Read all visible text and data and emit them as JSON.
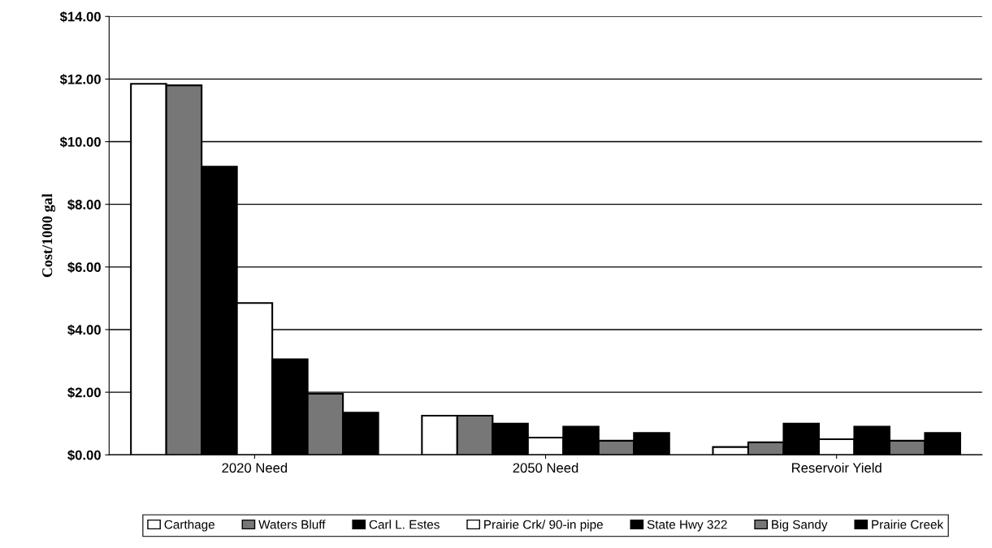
{
  "chart_data": {
    "type": "bar",
    "ylabel": "Cost/1000 gal",
    "categories": [
      "2020 Need",
      "2050 Need",
      "Reservoir Yield"
    ],
    "series": [
      {
        "name": "Carthage",
        "color": "#ffffff",
        "values": [
          11.85,
          1.25,
          0.25
        ]
      },
      {
        "name": "Waters Bluff",
        "color": "#777777",
        "values": [
          11.8,
          1.25,
          0.4
        ]
      },
      {
        "name": "Carl L. Estes",
        "color": "#000000",
        "values": [
          9.2,
          1.0,
          1.0
        ]
      },
      {
        "name": "Prairie Crk/ 90-in pipe",
        "color": "#ffffff",
        "values": [
          4.85,
          0.55,
          0.5
        ]
      },
      {
        "name": "State Hwy 322",
        "color": "#000000",
        "values": [
          3.05,
          0.9,
          0.9
        ]
      },
      {
        "name": "Big Sandy",
        "color": "#777777",
        "values": [
          1.95,
          0.45,
          0.45
        ]
      },
      {
        "name": "Prairie Creek",
        "color": "#000000",
        "values": [
          1.35,
          0.7,
          0.7
        ]
      }
    ],
    "ylim": [
      0,
      14
    ],
    "yticks": [
      {
        "value": 0,
        "label": "$0.00"
      },
      {
        "value": 2,
        "label": "$2.00"
      },
      {
        "value": 4,
        "label": "$4.00"
      },
      {
        "value": 6,
        "label": "$6.00"
      },
      {
        "value": 8,
        "label": "$8.00"
      },
      {
        "value": 10,
        "label": "$10.00"
      },
      {
        "value": 12,
        "label": "$12.00"
      },
      {
        "value": 14,
        "label": "$14.00"
      }
    ],
    "grid": "y",
    "legend": "bottom"
  }
}
